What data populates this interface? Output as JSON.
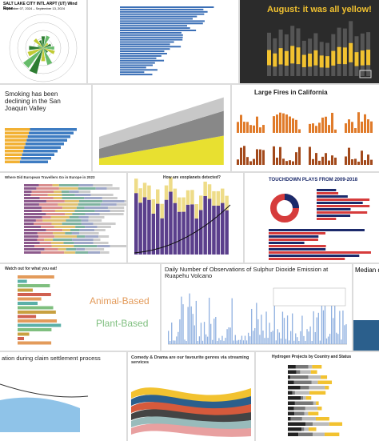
{
  "tiles": [
    {
      "title": "SALT LAKE CITY INTL ARPT (UT) Wind Rose",
      "subtitle": "September 07, 2024 – September 13, 2024"
    },
    {
      "title": "August: it was all yellow!"
    },
    {
      "title": "Smoking has been declining in the San Joaquin Valley"
    },
    {
      "title": "Large Fires in California"
    },
    {
      "title": "Where Did European Travellers Go in Europe in 2023"
    },
    {
      "title": "How are exoplanets detected?"
    },
    {
      "title": "TOUCHDOWN PLAYS FROM 2009-2018"
    },
    {
      "title": "Watch out for what you eat!",
      "labels": [
        "Animal-Based",
        "Plant-Based"
      ]
    },
    {
      "title": "Daily Number of Observations of Sulphur Dioxide Emission at Ruapehu Volcano"
    },
    {
      "title": "Median du"
    },
    {
      "title": "ation during claim settlement process"
    },
    {
      "title": "Comedy & Drama are our favourite genres via streaming services"
    },
    {
      "title": "Hydrogen Projects by Country and Status"
    }
  ]
}
